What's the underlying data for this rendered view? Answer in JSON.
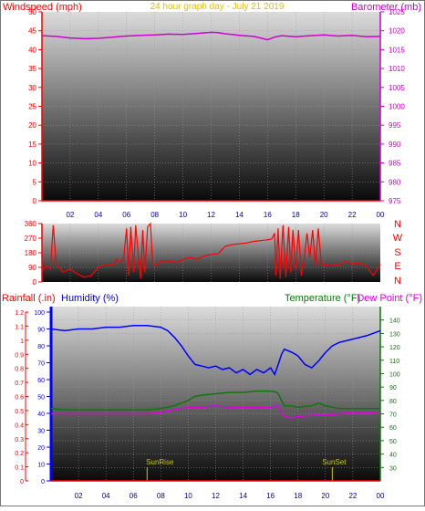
{
  "colors": {
    "windspeed": "#ff0000",
    "barometer": "#d000d0",
    "wind_direction": "#ff0000",
    "humidity": "#0000ff",
    "temperature": "#0a7a0a",
    "dewpoint": "#e000e0",
    "rainfall": "#ff0000",
    "title": "#e0c000",
    "sun_marker": "#c8c800",
    "axis_left_top": "#ff0000",
    "axis_right_top": "#d000d0"
  },
  "header": {
    "windspeed_label": "Windspeed (mph)",
    "title": "24 hour graph day - July 21 2019",
    "barometer_label": "Barometer (mb)"
  },
  "direction_labels": [
    "N",
    "W",
    "S",
    "E",
    "N"
  ],
  "legend_bottom": {
    "rainfall_label": "Rainfall (.in)",
    "humidity_label": "Humidity (%)",
    "temperature_label": "Temperature (°F)",
    "dewpoint_label": "Dew Point (°F)"
  },
  "sun_labels": {
    "sunrise": "SunRise",
    "sunset": "SunSet"
  },
  "chart_data": [
    {
      "type": "line",
      "panel": "wind-barometer",
      "title": "24 hour graph day - July 21 2019",
      "xlabel": "",
      "x_ticks": [
        "02",
        "04",
        "06",
        "08",
        "10",
        "12",
        "14",
        "16",
        "18",
        "20",
        "22",
        "00"
      ],
      "xlim": [
        0,
        24
      ],
      "ylabel": "Windspeed (mph)",
      "ylim": [
        0,
        50
      ],
      "y_ticks": [
        "0",
        "5",
        "10",
        "15",
        "20",
        "25",
        "30",
        "35",
        "40",
        "45",
        "50"
      ],
      "y2label": "Barometer (mb)",
      "y2lim": [
        975,
        1025
      ],
      "y2_ticks": [
        "975",
        "980",
        "985",
        "990",
        "995",
        "1000",
        "1005",
        "1010",
        "1015",
        "1020",
        "1025"
      ],
      "series": [
        {
          "axis": "y2",
          "x": [
            0,
            1,
            2,
            3,
            4,
            5,
            6,
            7,
            8,
            9,
            10,
            11,
            12,
            12.5,
            13,
            14,
            15,
            15.5,
            16,
            16.5,
            17,
            18,
            19,
            20,
            21,
            22,
            23,
            24
          ],
          "y": [
            1018.7,
            1018.5,
            1018.1,
            1017.9,
            1018.0,
            1018.3,
            1018.6,
            1018.8,
            1018.9,
            1019.1,
            1019.0,
            1019.3,
            1019.6,
            1019.5,
            1019.2,
            1018.8,
            1018.5,
            1018.1,
            1017.6,
            1018.3,
            1018.7,
            1018.4,
            1018.7,
            1018.9,
            1018.6,
            1018.8,
            1018.4,
            1018.5
          ]
        },
        {
          "axis": "y",
          "x": [
            0,
            24
          ],
          "y": [
            0,
            0
          ]
        }
      ]
    },
    {
      "type": "line",
      "panel": "wind-direction",
      "y_ticks": [
        "0",
        "90",
        "180",
        "270",
        "360"
      ],
      "ylim": [
        0,
        360
      ],
      "series": [
        {
          "x": [
            0,
            0.3,
            0.6,
            0.8,
            1.0,
            1.2,
            1.5,
            2.0,
            2.5,
            3.0,
            3.5,
            4.0,
            4.5,
            5.0,
            5.3,
            5.6,
            5.8,
            6.0,
            6.15,
            6.3,
            6.5,
            6.65,
            6.8,
            7.0,
            7.15,
            7.3,
            7.5,
            7.7,
            7.85,
            8.0,
            8.5,
            9.0,
            9.5,
            10.0,
            10.5,
            11.0,
            11.5,
            12.0,
            12.5,
            13.0,
            13.5,
            14.0,
            14.5,
            15.0,
            15.5,
            16.0,
            16.3,
            16.5,
            16.6,
            16.75,
            16.9,
            17.1,
            17.3,
            17.5,
            17.65,
            17.8,
            18.0,
            18.2,
            18.4,
            18.6,
            18.8,
            19.0,
            19.2,
            19.4,
            19.6,
            19.8,
            20.0,
            20.5,
            21.0,
            21.5,
            22.0,
            22.5,
            23.0,
            23.5,
            24.0
          ],
          "y": [
            60,
            100,
            80,
            350,
            120,
            90,
            60,
            80,
            50,
            30,
            40,
            90,
            110,
            100,
            140,
            120,
            150,
            330,
            40,
            340,
            60,
            350,
            200,
            20,
            320,
            60,
            340,
            360,
            120,
            100,
            130,
            130,
            120,
            140,
            150,
            140,
            160,
            170,
            175,
            220,
            230,
            235,
            240,
            250,
            255,
            260,
            265,
            300,
            40,
            330,
            20,
            350,
            30,
            340,
            60,
            320,
            80,
            320,
            40,
            140,
            300,
            150,
            320,
            100,
            330,
            120,
            100,
            110,
            100,
            130,
            110,
            120,
            100,
            40,
            110
          ]
        }
      ]
    },
    {
      "type": "line",
      "panel": "humidity-temperature",
      "x_ticks": [
        "02",
        "04",
        "06",
        "08",
        "10",
        "12",
        "14",
        "16",
        "18",
        "20",
        "22",
        "00"
      ],
      "xlim": [
        0,
        24
      ],
      "ylim_rainfall": [
        0,
        1.2
      ],
      "rainfall_ticks": [
        "0",
        "0.1",
        "0.2",
        "0.3",
        "0.4",
        "0.5",
        "0.6",
        "0.7",
        "0.8",
        "0.9",
        "1",
        "1.1",
        "1.2"
      ],
      "ylim_humidity": [
        0,
        100
      ],
      "humidity_ticks": [
        "0",
        "10",
        "20",
        "30",
        "40",
        "50",
        "60",
        "70",
        "80",
        "90",
        "100"
      ],
      "ylim_temperature": [
        20,
        150
      ],
      "temperature_ticks": [
        "30",
        "40",
        "50",
        "60",
        "70",
        "80",
        "90",
        "100",
        "110",
        "120",
        "130",
        "140"
      ],
      "sunrise_hour": 7.0,
      "sunset_hour": 20.5,
      "series": [
        {
          "name": "Humidity (%)",
          "axis": "humidity",
          "x": [
            0,
            1,
            2,
            3,
            4,
            5,
            6,
            7,
            8,
            8.5,
            9,
            9.5,
            10,
            10.5,
            11,
            11.5,
            12,
            12.5,
            13,
            13.5,
            14,
            14.5,
            15,
            15.5,
            16,
            16.3,
            16.6,
            16.8,
            17,
            17.3,
            17.6,
            18,
            18.5,
            19,
            19.5,
            20,
            20.5,
            21,
            22,
            23,
            24
          ],
          "y": [
            90,
            89,
            90,
            90,
            91,
            91,
            92,
            92,
            91,
            89,
            85,
            80,
            74,
            69,
            68,
            67,
            68,
            66,
            67,
            64,
            66,
            63,
            66,
            64,
            67,
            63,
            70,
            75,
            78,
            77,
            76,
            74,
            69,
            67,
            71,
            76,
            80,
            82,
            84,
            86,
            89
          ]
        },
        {
          "name": "Temperature (°F)",
          "axis": "temperature",
          "x": [
            0,
            1,
            2,
            3,
            4,
            5,
            6,
            7,
            8,
            9,
            10,
            10.5,
            11,
            12,
            13,
            14,
            15,
            16,
            16.5,
            17,
            17.5,
            18,
            19,
            19.5,
            20,
            21,
            22,
            23,
            24
          ],
          "y": [
            74,
            73,
            73,
            73,
            73,
            73,
            73,
            73,
            74,
            76,
            80,
            83,
            84,
            85,
            86,
            86,
            87,
            87,
            86,
            76,
            76,
            75,
            76,
            78,
            76,
            74,
            74,
            74,
            74
          ]
        },
        {
          "name": "Dew Point (°F)",
          "axis": "temperature",
          "x": [
            0,
            1,
            2,
            3,
            4,
            5,
            6,
            7,
            8,
            9,
            10,
            11,
            12,
            13,
            14,
            15,
            16,
            16.5,
            17,
            17.5,
            18,
            19,
            20,
            21,
            22,
            23,
            24
          ],
          "y": [
            70,
            70,
            70,
            70,
            70,
            70,
            70,
            70,
            71,
            73,
            75,
            75,
            76,
            75,
            75,
            75,
            75,
            76,
            68,
            67,
            68,
            69,
            69,
            70,
            71,
            71,
            70
          ]
        },
        {
          "name": "Rainfall (.in)",
          "axis": "rainfall",
          "x": [
            0,
            24
          ],
          "y": [
            0,
            0
          ]
        }
      ]
    }
  ]
}
